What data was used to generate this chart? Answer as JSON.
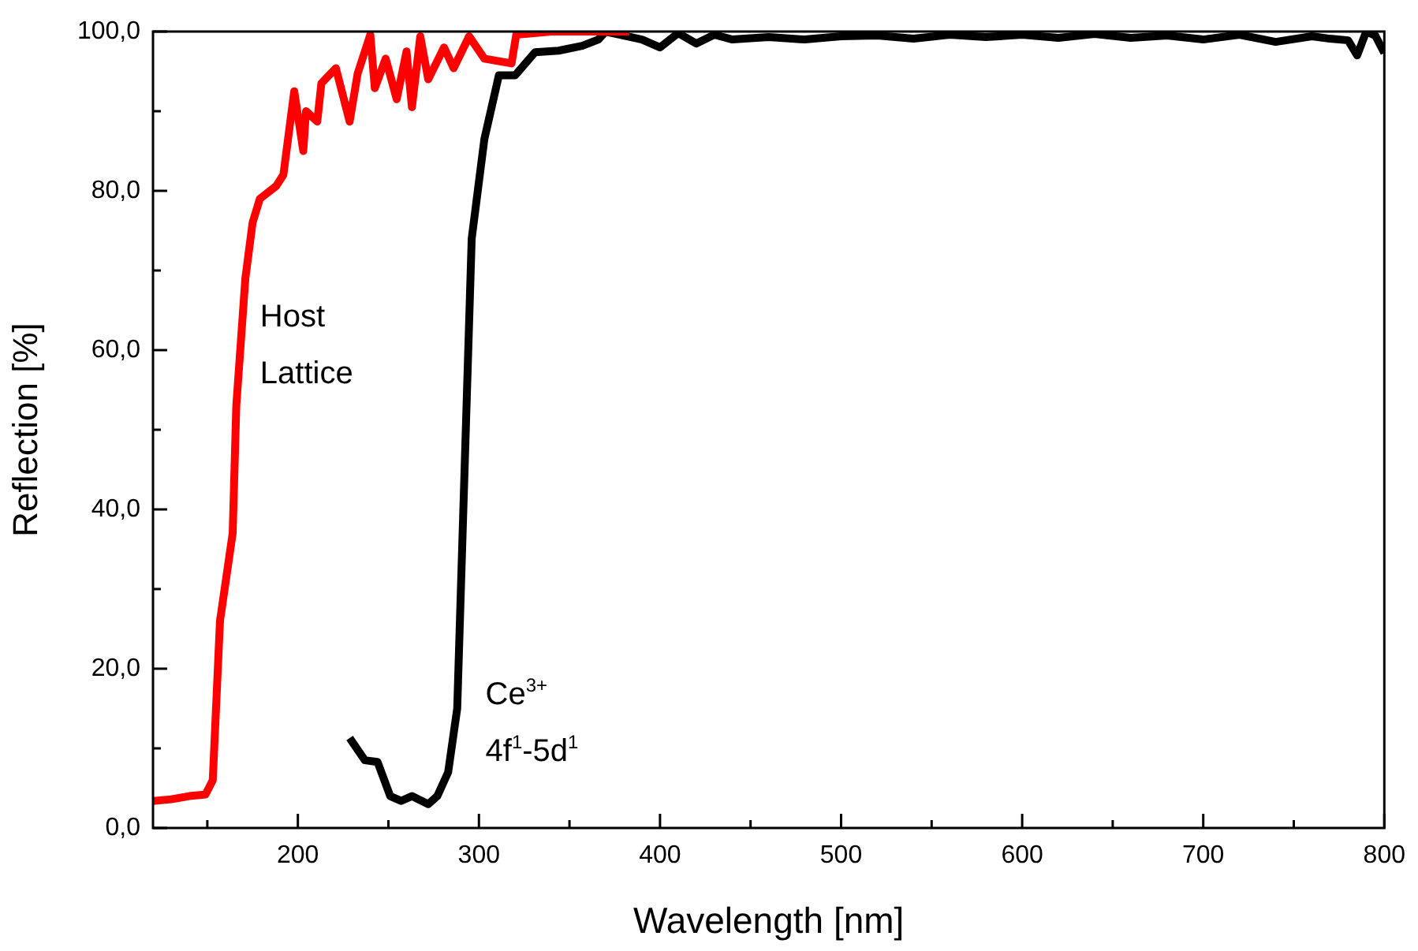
{
  "chart_data": {
    "type": "line",
    "xlabel": "Wavelength [nm]",
    "ylabel": "Reflection [%]",
    "marker": "none",
    "xlim": [
      120,
      800
    ],
    "ylim": [
      0,
      100
    ],
    "xticks": [
      {
        "value": 150,
        "label": null
      },
      200,
      {
        "value": 250,
        "label": null
      },
      300,
      {
        "value": 350,
        "label": null
      },
      400,
      {
        "value": 450,
        "label": null
      },
      500,
      {
        "value": 550,
        "label": null
      },
      600,
      {
        "value": 650,
        "label": null
      },
      700,
      {
        "value": 750,
        "label": null
      },
      800
    ],
    "yticks": [
      {
        "value": 0,
        "label": "0,0"
      },
      {
        "value": 10,
        "label": null
      },
      {
        "value": 20,
        "label": "20,0"
      },
      {
        "value": 30,
        "label": null
      },
      {
        "value": 40,
        "label": "40,0"
      },
      {
        "value": 50,
        "label": null
      },
      {
        "value": 60,
        "label": "60,0"
      },
      {
        "value": 70,
        "label": null
      },
      {
        "value": 80,
        "label": "80,0"
      },
      {
        "value": 90,
        "label": null
      },
      {
        "value": 100,
        "label": "100,0"
      }
    ],
    "series": [
      {
        "color": "#ff0000",
        "x": [
          120,
          130,
          140,
          149,
          153,
          157,
          164,
          166,
          171,
          175,
          179,
          188,
          192,
          198,
          203,
          204.5,
          210.7,
          213,
          221,
          228.6,
          233,
          240,
          242.5,
          248.5,
          254.6,
          260,
          263,
          267.6,
          272,
          280.7,
          286,
          294.6,
          303,
          318,
          320.6,
          340,
          360,
          383
        ],
        "values": [
          3.4,
          3.6,
          4,
          4.2,
          6,
          26,
          37,
          53,
          69,
          76,
          79,
          80.6,
          82,
          92.5,
          85,
          90,
          88.7,
          93.5,
          95.4,
          88.7,
          94.7,
          99.6,
          92.9,
          96.6,
          91.5,
          97.5,
          90.5,
          99.4,
          94,
          98,
          95.4,
          99.4,
          96.6,
          96,
          99.6,
          100,
          100,
          100
        ]
      },
      {
        "color": "#000000",
        "x": [
          228.6,
          237,
          244,
          251,
          257,
          263,
          272,
          277,
          283,
          288,
          292,
          296,
          303,
          311,
          320,
          331,
          344,
          357,
          366,
          370,
          380,
          390,
          400,
          410,
          420,
          430,
          440,
          460,
          480,
          500,
          520,
          540,
          560,
          580,
          600,
          620,
          640,
          660,
          680,
          700,
          720,
          740,
          760,
          770,
          780,
          785,
          790,
          795,
          800
        ],
        "values": [
          11.3,
          8.5,
          8.3,
          4,
          3.4,
          4,
          3,
          4,
          7,
          15,
          44.5,
          74,
          86.5,
          94.5,
          94.5,
          97.4,
          97.6,
          98.2,
          99,
          100,
          99.5,
          99,
          98,
          99.8,
          98.5,
          99.6,
          99,
          99.3,
          99,
          99.4,
          99.5,
          99.1,
          99.6,
          99.3,
          99.6,
          99.2,
          99.7,
          99.2,
          99.5,
          99,
          99.6,
          98.7,
          99.4,
          99.1,
          98.9,
          97,
          100,
          99.5,
          97.3
        ]
      }
    ],
    "annotations": [
      "Host\nLattice",
      "Ce$^{3+}$\n4f$^{1}$-5d$^{1}$"
    ]
  }
}
